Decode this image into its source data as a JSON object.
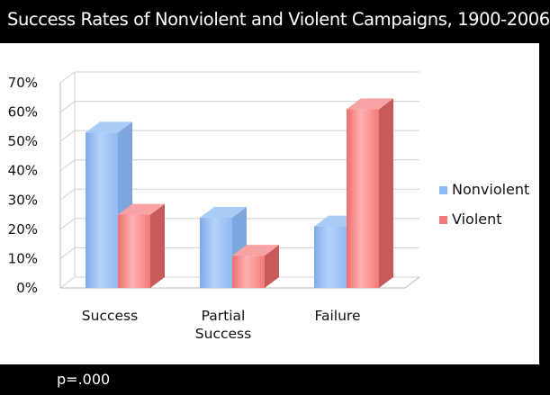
{
  "title": "Success Rates of Nonviolent and Violent Campaigns, 1900-2006",
  "footer_note": "p=.000",
  "colors": {
    "nonviolent": "#8fbaf3",
    "violent": "#f47a7a"
  },
  "chart_data": {
    "type": "bar",
    "title": "Success Rates of Nonviolent and Violent Campaigns, 1900-2006",
    "categories": [
      "Success",
      "Partial Success",
      "Failure"
    ],
    "category_lines": [
      [
        "Success"
      ],
      [
        "Partial",
        "Success"
      ],
      [
        "Failure"
      ]
    ],
    "series": [
      {
        "name": "Nonviolent",
        "values": [
          53,
          24,
          21
        ]
      },
      {
        "name": "Violent",
        "values": [
          25,
          11,
          61
        ]
      }
    ],
    "ylim": [
      0,
      70
    ],
    "yticks": [
      "0%",
      "10%",
      "20%",
      "30%",
      "40%",
      "50%",
      "60%",
      "70%"
    ],
    "grid": true,
    "legend": "right",
    "style": "3d-bar"
  }
}
